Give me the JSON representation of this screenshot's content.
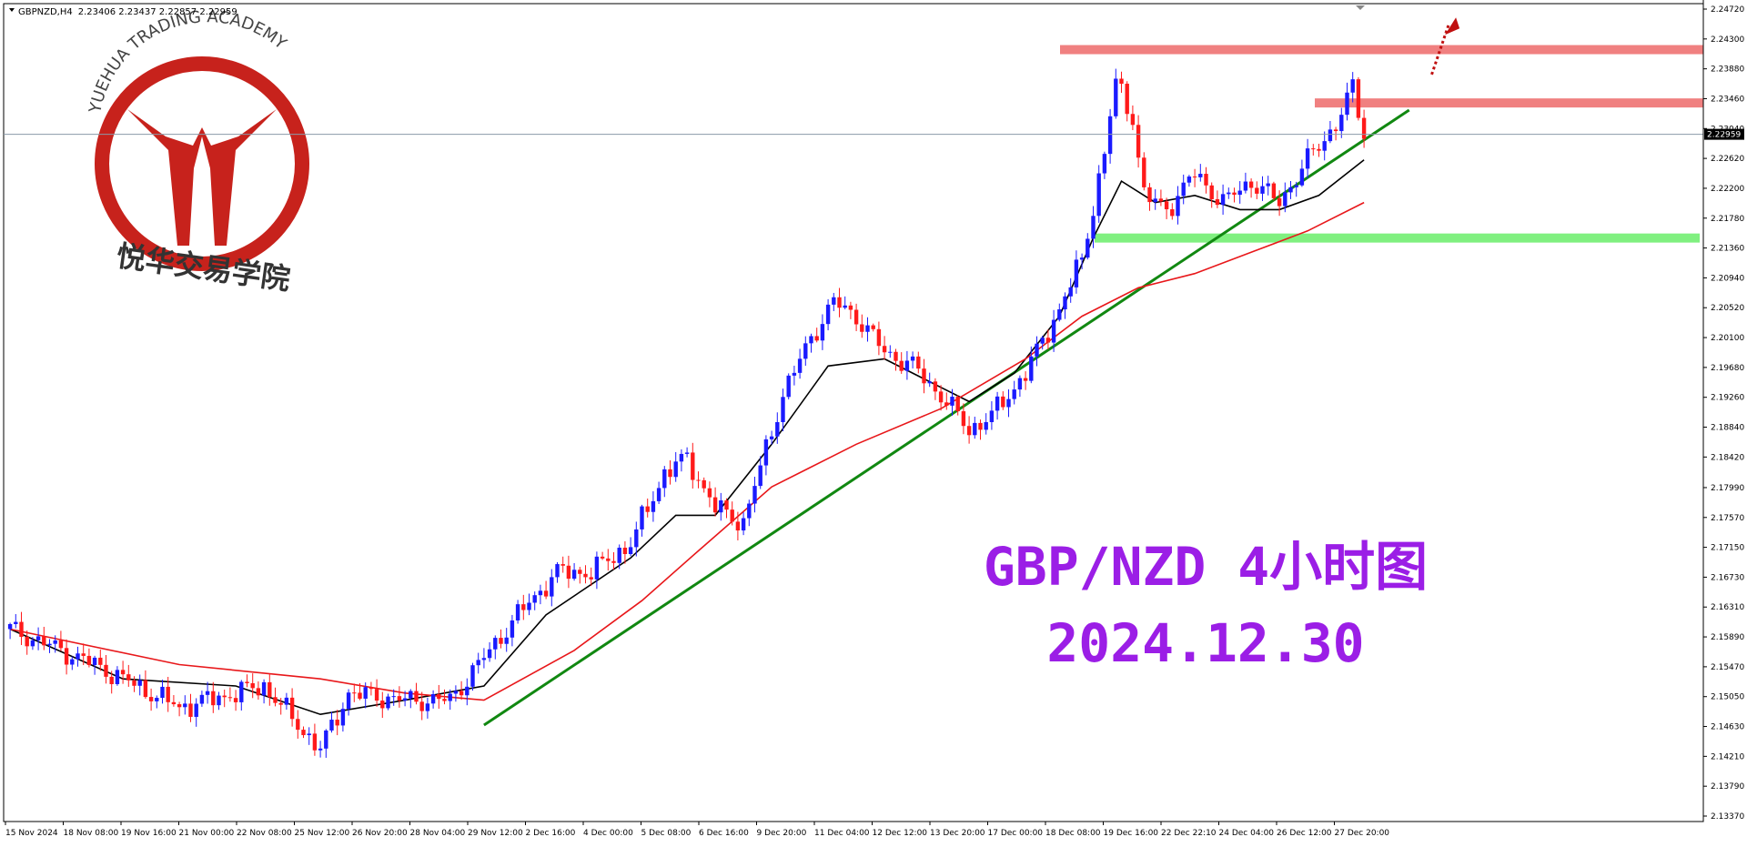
{
  "window": {
    "title": "GBPNZD,H4",
    "ohlc": "2.23406 2.23437 2.22857 2.22959"
  },
  "logo": {
    "arc_text": "YUEHUA TRADING ACADEMY",
    "cn_text": "悦华交易学院"
  },
  "overlay": {
    "line1": "GBP/NZD 4小时图",
    "line2": "2024.12.30"
  },
  "chart_data": {
    "type": "candlestick",
    "symbol": "GBPNZD",
    "timeframe": "H4",
    "title": "",
    "xlabel": "",
    "ylabel": "",
    "ylim": [
      2.1337,
      2.2472
    ],
    "grid": false,
    "current_price": "2.22959",
    "y_ticks": [
      "2.24720",
      "2.24300",
      "2.23880",
      "2.23460",
      "2.23040",
      "2.22620",
      "2.22200",
      "2.21780",
      "2.21360",
      "2.20940",
      "2.20520",
      "2.20100",
      "2.19680",
      "2.19260",
      "2.18840",
      "2.18420",
      "2.17990",
      "2.17570",
      "2.17150",
      "2.16730",
      "2.16310",
      "2.15890",
      "2.15470",
      "2.15050",
      "2.14630",
      "2.14210",
      "2.13790",
      "2.13370"
    ],
    "x_ticks": [
      "15 Nov 2024",
      "18 Nov 08:00",
      "19 Nov 16:00",
      "21 Nov 00:00",
      "22 Nov 08:00",
      "25 Nov 12:00",
      "26 Nov 20:00",
      "28 Nov 04:00",
      "29 Nov 12:00",
      "2 Dec 16:00",
      "4 Dec 00:00",
      "5 Dec 08:00",
      "6 Dec 16:00",
      "9 Dec 20:00",
      "11 Dec 04:00",
      "12 Dec 12:00",
      "13 Dec 20:00",
      "17 Dec 00:00",
      "18 Dec 08:00",
      "19 Dec 16:00",
      "22 Dec 22:10",
      "24 Dec 04:00",
      "26 Dec 12:00",
      "27 Dec 20:00"
    ],
    "key_closes": [
      [
        0,
        2.16
      ],
      [
        15,
        2.155
      ],
      [
        30,
        2.149
      ],
      [
        45,
        2.152
      ],
      [
        55,
        2.143
      ],
      [
        60,
        2.151
      ],
      [
        70,
        2.15
      ],
      [
        78,
        2.15
      ],
      [
        84,
        2.156
      ],
      [
        90,
        2.162
      ],
      [
        97,
        2.168
      ],
      [
        103,
        2.168
      ],
      [
        110,
        2.172
      ],
      [
        116,
        2.182
      ],
      [
        120,
        2.184
      ],
      [
        125,
        2.177
      ],
      [
        130,
        2.175
      ],
      [
        137,
        2.193
      ],
      [
        142,
        2.201
      ],
      [
        146,
        2.206
      ],
      [
        150,
        2.204
      ],
      [
        155,
        2.199
      ],
      [
        160,
        2.197
      ],
      [
        166,
        2.192
      ],
      [
        170,
        2.188
      ],
      [
        174,
        2.19
      ],
      [
        180,
        2.196
      ],
      [
        186,
        2.205
      ],
      [
        190,
        2.212
      ],
      [
        194,
        2.227
      ],
      [
        196,
        2.237
      ],
      [
        199,
        2.232
      ],
      [
        201,
        2.221
      ],
      [
        205,
        2.219
      ],
      [
        210,
        2.224
      ],
      [
        215,
        2.22
      ],
      [
        220,
        2.223
      ],
      [
        225,
        2.22
      ],
      [
        230,
        2.226
      ],
      [
        235,
        2.231
      ],
      [
        238,
        2.236
      ],
      [
        240,
        2.2296
      ]
    ],
    "moving_averages": [
      {
        "color": "#000000",
        "period": "fast",
        "points": [
          [
            0,
            2.16
          ],
          [
            20,
            2.153
          ],
          [
            40,
            2.152
          ],
          [
            55,
            2.148
          ],
          [
            70,
            2.15
          ],
          [
            84,
            2.152
          ],
          [
            95,
            2.162
          ],
          [
            110,
            2.17
          ],
          [
            118,
            2.176
          ],
          [
            125,
            2.176
          ],
          [
            135,
            2.186
          ],
          [
            145,
            2.197
          ],
          [
            155,
            2.198
          ],
          [
            165,
            2.194
          ],
          [
            170,
            2.192
          ],
          [
            178,
            2.196
          ],
          [
            186,
            2.204
          ],
          [
            192,
            2.215
          ],
          [
            197,
            2.223
          ],
          [
            203,
            2.22
          ],
          [
            210,
            2.221
          ],
          [
            218,
            2.219
          ],
          [
            225,
            2.219
          ],
          [
            232,
            2.221
          ],
          [
            240,
            2.226
          ]
        ]
      },
      {
        "color": "#e8171a",
        "period": "slow",
        "points": [
          [
            0,
            2.16
          ],
          [
            30,
            2.155
          ],
          [
            55,
            2.153
          ],
          [
            70,
            2.151
          ],
          [
            84,
            2.15
          ],
          [
            100,
            2.157
          ],
          [
            112,
            2.164
          ],
          [
            122,
            2.171
          ],
          [
            135,
            2.18
          ],
          [
            150,
            2.186
          ],
          [
            165,
            2.191
          ],
          [
            180,
            2.198
          ],
          [
            190,
            2.204
          ],
          [
            200,
            2.208
          ],
          [
            210,
            2.21
          ],
          [
            220,
            2.213
          ],
          [
            230,
            2.216
          ],
          [
            240,
            2.22
          ]
        ]
      }
    ],
    "annotations": {
      "resistance_zones": [
        {
          "y": 2.2415,
          "color": "#f08080"
        },
        {
          "y": 2.234,
          "color": "#f08080"
        }
      ],
      "support_zones": [
        {
          "y": 2.215,
          "color": "#80f080"
        }
      ],
      "trendline": {
        "color": "#118811",
        "from": [
          84,
          2.1465
        ],
        "to": [
          248,
          2.233
        ]
      },
      "arrow": {
        "color": "#c01010",
        "from": [
          252,
          2.238
        ],
        "to": [
          255,
          2.245
        ]
      }
    }
  }
}
